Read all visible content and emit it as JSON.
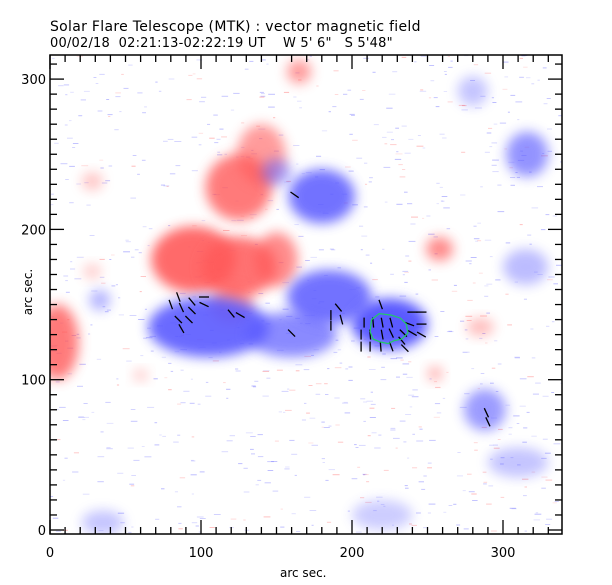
{
  "header": {
    "title": "Solar Flare Telescope (MTK) : vector magnetic field",
    "subtitle": "00/02/18  02:21:13-02:22:19 UT    W 5' 6\"   S 5'48\""
  },
  "colors": {
    "positive": "#ff5a5a",
    "negative": "#5a5aff",
    "arrow": "#000000",
    "contour": "#22cc66"
  },
  "chart_data": {
    "type": "heatmap",
    "title": "Solar Flare Telescope (MTK) : vector magnetic field",
    "xlabel": "arc sec.",
    "ylabel": "arc sec.",
    "xlim": [
      0,
      340
    ],
    "ylim": [
      0,
      317
    ],
    "xticks": [
      "0",
      "100",
      "200",
      "300"
    ],
    "yticks": [
      "0",
      "100",
      "200",
      "300"
    ],
    "xtick_values": [
      0,
      100,
      200,
      300
    ],
    "ytick_values": [
      0,
      100,
      200,
      300
    ],
    "blobs": [
      {
        "polarity": "positive",
        "x": 125,
        "y": 228,
        "rx": 22,
        "ry": 22,
        "strength": 0.8
      },
      {
        "polarity": "positive",
        "x": 140,
        "y": 250,
        "rx": 16,
        "ry": 20,
        "strength": 0.6
      },
      {
        "polarity": "positive",
        "x": 95,
        "y": 180,
        "rx": 28,
        "ry": 22,
        "strength": 0.9
      },
      {
        "polarity": "positive",
        "x": 125,
        "y": 175,
        "rx": 25,
        "ry": 20,
        "strength": 0.85
      },
      {
        "polarity": "positive",
        "x": 150,
        "y": 180,
        "rx": 14,
        "ry": 18,
        "strength": 0.7
      },
      {
        "polarity": "positive",
        "x": 120,
        "y": 150,
        "rx": 14,
        "ry": 12,
        "strength": 0.6
      },
      {
        "polarity": "positive",
        "x": 5,
        "y": 125,
        "rx": 14,
        "ry": 25,
        "strength": 0.8
      },
      {
        "polarity": "positive",
        "x": 165,
        "y": 305,
        "rx": 8,
        "ry": 8,
        "strength": 0.6
      },
      {
        "polarity": "positive",
        "x": 258,
        "y": 187,
        "rx": 9,
        "ry": 8,
        "strength": 0.7
      },
      {
        "polarity": "positive",
        "x": 285,
        "y": 135,
        "rx": 9,
        "ry": 6,
        "strength": 0.4
      },
      {
        "polarity": "positive",
        "x": 28,
        "y": 232,
        "rx": 7,
        "ry": 6,
        "strength": 0.35
      },
      {
        "polarity": "positive",
        "x": 28,
        "y": 172,
        "rx": 6,
        "ry": 5,
        "strength": 0.3
      },
      {
        "polarity": "positive",
        "x": 255,
        "y": 104,
        "rx": 5,
        "ry": 5,
        "strength": 0.45
      },
      {
        "polarity": "positive",
        "x": 60,
        "y": 103,
        "rx": 5,
        "ry": 4,
        "strength": 0.3
      },
      {
        "polarity": "negative",
        "x": 105,
        "y": 135,
        "rx": 40,
        "ry": 20,
        "strength": 0.9
      },
      {
        "polarity": "negative",
        "x": 160,
        "y": 130,
        "rx": 30,
        "ry": 15,
        "strength": 0.7
      },
      {
        "polarity": "negative",
        "x": 185,
        "y": 155,
        "rx": 28,
        "ry": 18,
        "strength": 0.85
      },
      {
        "polarity": "negative",
        "x": 225,
        "y": 137,
        "rx": 25,
        "ry": 17,
        "strength": 1.0
      },
      {
        "polarity": "negative",
        "x": 180,
        "y": 222,
        "rx": 22,
        "ry": 18,
        "strength": 0.85
      },
      {
        "polarity": "negative",
        "x": 150,
        "y": 238,
        "rx": 10,
        "ry": 9,
        "strength": 0.5
      },
      {
        "polarity": "negative",
        "x": 316,
        "y": 250,
        "rx": 14,
        "ry": 15,
        "strength": 0.65
      },
      {
        "polarity": "negative",
        "x": 288,
        "y": 80,
        "rx": 14,
        "ry": 14,
        "strength": 0.6
      },
      {
        "polarity": "negative",
        "x": 315,
        "y": 175,
        "rx": 15,
        "ry": 12,
        "strength": 0.4
      },
      {
        "polarity": "negative",
        "x": 280,
        "y": 292,
        "rx": 10,
        "ry": 10,
        "strength": 0.35
      },
      {
        "polarity": "negative",
        "x": 310,
        "y": 45,
        "rx": 20,
        "ry": 10,
        "strength": 0.35
      },
      {
        "polarity": "negative",
        "x": 33,
        "y": 153,
        "rx": 7,
        "ry": 7,
        "strength": 0.45
      },
      {
        "polarity": "negative",
        "x": 35,
        "y": 5,
        "rx": 14,
        "ry": 8,
        "strength": 0.35
      },
      {
        "polarity": "negative",
        "x": 220,
        "y": 10,
        "rx": 20,
        "ry": 10,
        "strength": 0.3
      }
    ],
    "vectors": [
      {
        "x": 85,
        "y": 155,
        "angle": 110
      },
      {
        "x": 94,
        "y": 152,
        "angle": 130
      },
      {
        "x": 102,
        "y": 155,
        "angle": 0
      },
      {
        "x": 80,
        "y": 150,
        "angle": 110
      },
      {
        "x": 87,
        "y": 148,
        "angle": 115
      },
      {
        "x": 94,
        "y": 146,
        "angle": 135
      },
      {
        "x": 102,
        "y": 150,
        "angle": 155
      },
      {
        "x": 85,
        "y": 140,
        "angle": 135
      },
      {
        "x": 92,
        "y": 140,
        "angle": 135
      },
      {
        "x": 87,
        "y": 134,
        "angle": 120
      },
      {
        "x": 120,
        "y": 144,
        "angle": 130
      },
      {
        "x": 126,
        "y": 143,
        "angle": 150
      },
      {
        "x": 160,
        "y": 131,
        "angle": 135
      },
      {
        "x": 162,
        "y": 223,
        "angle": 145
      },
      {
        "x": 186,
        "y": 143,
        "angle": 90
      },
      {
        "x": 186,
        "y": 136,
        "angle": 90
      },
      {
        "x": 191,
        "y": 148,
        "angle": 130
      },
      {
        "x": 193,
        "y": 140,
        "angle": 105
      },
      {
        "x": 219,
        "y": 150,
        "angle": 110
      },
      {
        "x": 240,
        "y": 145,
        "angle": 180
      },
      {
        "x": 246,
        "y": 145,
        "angle": 180
      },
      {
        "x": 246,
        "y": 137,
        "angle": 180
      },
      {
        "x": 238,
        "y": 137,
        "angle": 160
      },
      {
        "x": 240,
        "y": 131,
        "angle": 150
      },
      {
        "x": 246,
        "y": 130,
        "angle": 150
      },
      {
        "x": 234,
        "y": 131,
        "angle": 135
      },
      {
        "x": 208,
        "y": 138,
        "angle": 90
      },
      {
        "x": 214,
        "y": 138,
        "angle": 95
      },
      {
        "x": 220,
        "y": 138,
        "angle": 100
      },
      {
        "x": 226,
        "y": 138,
        "angle": 105
      },
      {
        "x": 206,
        "y": 130,
        "angle": 90
      },
      {
        "x": 212,
        "y": 130,
        "angle": 95
      },
      {
        "x": 220,
        "y": 130,
        "angle": 100
      },
      {
        "x": 226,
        "y": 131,
        "angle": 115
      },
      {
        "x": 233,
        "y": 126,
        "angle": 130
      },
      {
        "x": 206,
        "y": 122,
        "angle": 90
      },
      {
        "x": 212,
        "y": 122,
        "angle": 90
      },
      {
        "x": 219,
        "y": 122,
        "angle": 95
      },
      {
        "x": 226,
        "y": 122,
        "angle": 110
      },
      {
        "x": 235,
        "y": 121,
        "angle": 135
      },
      {
        "x": 289,
        "y": 78,
        "angle": 115
      },
      {
        "x": 290,
        "y": 72,
        "angle": 115
      }
    ],
    "contour": [
      [
        213,
        140
      ],
      [
        218,
        144
      ],
      [
        226,
        143
      ],
      [
        232,
        141
      ],
      [
        236,
        137
      ],
      [
        237,
        131
      ],
      [
        233,
        127
      ],
      [
        228,
        126
      ],
      [
        224,
        124
      ],
      [
        219,
        125
      ],
      [
        214,
        127
      ],
      [
        212,
        132
      ],
      [
        213,
        140
      ]
    ]
  }
}
